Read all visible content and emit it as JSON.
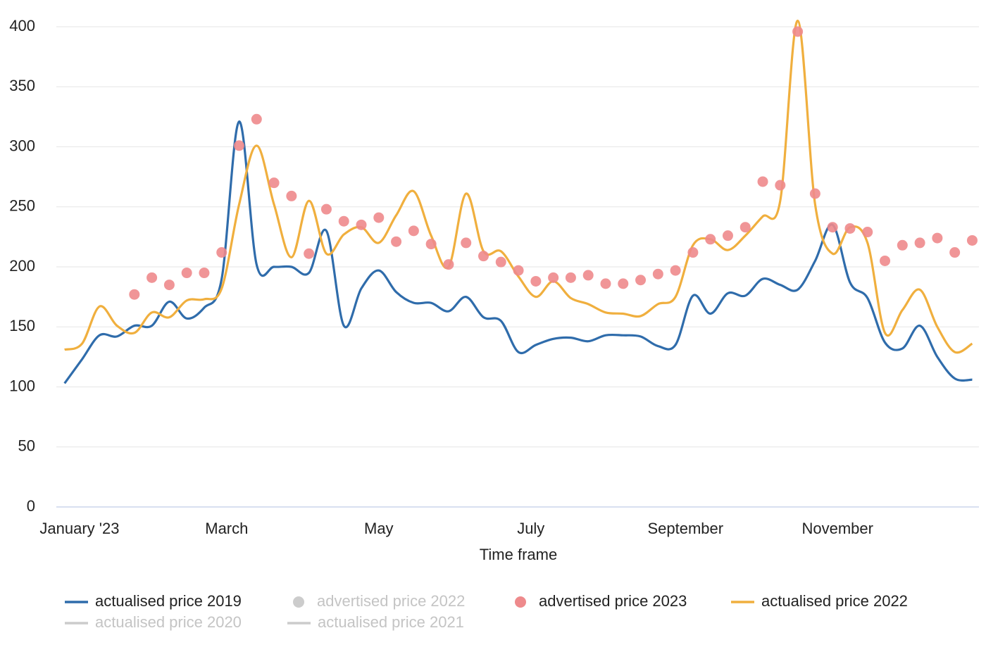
{
  "chart_data": {
    "type": "line",
    "x_label": "Time frame",
    "x": [
      -6,
      1,
      8,
      15,
      22,
      29,
      36,
      43,
      50,
      57,
      64,
      71,
      78,
      85,
      92,
      99,
      106,
      113,
      120,
      127,
      134,
      141,
      148,
      155,
      162,
      169,
      176,
      183,
      190,
      197,
      204,
      211,
      218,
      225,
      232,
      239,
      246,
      253,
      260,
      267,
      274,
      281,
      288,
      295,
      302,
      309,
      316,
      323,
      330,
      337,
      344,
      351,
      358
    ],
    "xlim": [
      -9.3,
      360.7
    ],
    "xticks": [
      {
        "value": 0,
        "label": "January '23"
      },
      {
        "value": 59,
        "label": "March"
      },
      {
        "value": 120,
        "label": "May"
      },
      {
        "value": 181,
        "label": "July"
      },
      {
        "value": 243,
        "label": "September"
      },
      {
        "value": 304,
        "label": "November"
      }
    ],
    "ylim": [
      0,
      400
    ],
    "yticks": [
      0,
      50,
      100,
      150,
      200,
      250,
      300,
      350,
      400
    ],
    "grid": true,
    "smooth": true,
    "series": [
      {
        "name": "actualised price 2019",
        "kind": "line",
        "color": "#2f6cab",
        "visible": true,
        "values": [
          103,
          123,
          143,
          142,
          151,
          151,
          171,
          157,
          166,
          190,
          321,
          202,
          200,
          200,
          195,
          230,
          151,
          182,
          197,
          179,
          170,
          170,
          163,
          175,
          158,
          155,
          129,
          135,
          140,
          141,
          138,
          143,
          143,
          142,
          134,
          135,
          176,
          161,
          178,
          176,
          190,
          185,
          181,
          205,
          235,
          187,
          174,
          137,
          132,
          151,
          125,
          107,
          106
        ]
      },
      {
        "name": "advertised price 2022",
        "kind": "scatter",
        "color": "#cccccc",
        "visible": false
      },
      {
        "name": "advertised price 2023",
        "kind": "scatter",
        "color": "#ee8a8c",
        "visible": true,
        "values": [
          null,
          null,
          null,
          null,
          177,
          191,
          185,
          195,
          195,
          212,
          301,
          323,
          270,
          259,
          211,
          248,
          238,
          235,
          241,
          221,
          230,
          219,
          202,
          220,
          209,
          204,
          197,
          188,
          191,
          191,
          193,
          186,
          186,
          189,
          194,
          197,
          212,
          223,
          226,
          233,
          271,
          268,
          396,
          261,
          233,
          232,
          229,
          205,
          218,
          220,
          224,
          212,
          222
        ]
      },
      {
        "name": "actualised price 2022",
        "kind": "line",
        "color": "#f0af3e",
        "visible": true,
        "values": [
          131,
          136,
          167,
          151,
          145,
          162,
          158,
          172,
          173,
          182,
          252,
          301,
          252,
          208,
          255,
          211,
          227,
          233,
          220,
          243,
          263,
          226,
          200,
          261,
          213,
          213,
          192,
          175,
          188,
          174,
          169,
          162,
          161,
          159,
          169,
          175,
          218,
          223,
          214,
          226,
          242,
          255,
          405,
          252,
          211,
          233,
          220,
          145,
          164,
          181,
          150,
          129,
          136
        ]
      },
      {
        "name": "actualised price 2020",
        "kind": "line",
        "color": "#cccccc",
        "visible": false
      },
      {
        "name": "actualised price 2021",
        "kind": "line",
        "color": "#cccccc",
        "visible": false
      }
    ]
  }
}
